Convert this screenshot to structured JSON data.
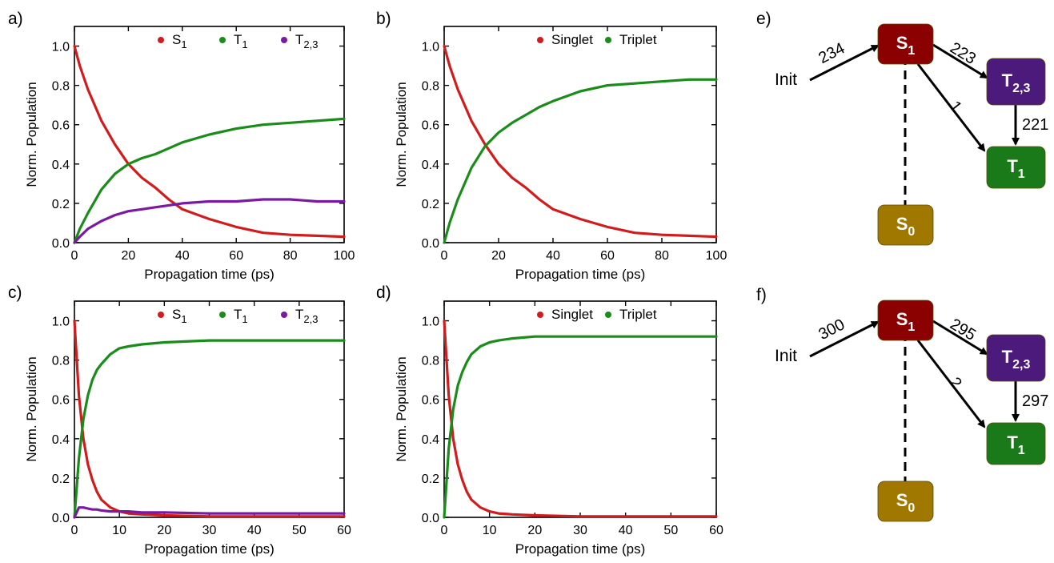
{
  "colors": {
    "s1": "#d01c1c",
    "t1": "#1a8c1a",
    "t23": "#7a1aa0",
    "box_s1": "#8b0000",
    "box_t23": "#4b1a7a",
    "box_t1": "#1a7a1a",
    "box_s0": "#a07800",
    "axis": "#000000"
  },
  "chart_data": [
    {
      "type": "line",
      "panel_label": "a)",
      "xlabel": "Propagation time (ps)",
      "ylabel": "Norm. Population",
      "xlim": [
        0,
        100
      ],
      "ylim": [
        0,
        1.1
      ],
      "xticks": [
        "0",
        "20",
        "40",
        "60",
        "80",
        "100"
      ],
      "yticks": [
        "0.0",
        "0.2",
        "0.4",
        "0.6",
        "0.8",
        "1.0"
      ],
      "legend": [
        {
          "base": "S",
          "sub": "1"
        },
        {
          "base": "T",
          "sub": "1"
        },
        {
          "base": "T",
          "sub": "2,3"
        }
      ],
      "legend_position": "top-right",
      "series": [
        {
          "name": "S1",
          "color": "s1",
          "x": [
            0,
            2,
            5,
            10,
            15,
            20,
            25,
            30,
            35,
            40,
            50,
            60,
            70,
            80,
            90,
            100
          ],
          "y": [
            1.0,
            0.9,
            0.78,
            0.62,
            0.5,
            0.4,
            0.33,
            0.28,
            0.22,
            0.17,
            0.12,
            0.08,
            0.05,
            0.04,
            0.035,
            0.03
          ]
        },
        {
          "name": "T1",
          "color": "t1",
          "x": [
            0,
            2,
            5,
            10,
            15,
            20,
            25,
            30,
            35,
            40,
            50,
            60,
            70,
            80,
            90,
            100
          ],
          "y": [
            0.0,
            0.07,
            0.15,
            0.27,
            0.35,
            0.4,
            0.43,
            0.45,
            0.48,
            0.51,
            0.55,
            0.58,
            0.6,
            0.61,
            0.62,
            0.63
          ]
        },
        {
          "name": "T2,3",
          "color": "t23",
          "x": [
            0,
            2,
            5,
            10,
            15,
            20,
            25,
            30,
            35,
            40,
            50,
            60,
            70,
            80,
            90,
            100
          ],
          "y": [
            0.0,
            0.03,
            0.07,
            0.11,
            0.14,
            0.16,
            0.17,
            0.18,
            0.19,
            0.2,
            0.21,
            0.21,
            0.22,
            0.22,
            0.21,
            0.21
          ]
        }
      ]
    },
    {
      "type": "line",
      "panel_label": "b)",
      "xlabel": "Propagation time (ps)",
      "ylabel": "Norm. Population",
      "xlim": [
        0,
        100
      ],
      "ylim": [
        0,
        1.1
      ],
      "xticks": [
        "0",
        "20",
        "40",
        "60",
        "80",
        "100"
      ],
      "yticks": [
        "0.0",
        "0.2",
        "0.4",
        "0.6",
        "0.8",
        "1.0"
      ],
      "legend": [
        {
          "base": "Singlet",
          "sub": ""
        },
        {
          "base": "Triplet",
          "sub": ""
        }
      ],
      "legend_position": "top-right",
      "series": [
        {
          "name": "Singlet",
          "color": "s1",
          "x": [
            0,
            2,
            5,
            10,
            15,
            20,
            25,
            30,
            35,
            40,
            50,
            60,
            70,
            80,
            90,
            100
          ],
          "y": [
            1.0,
            0.9,
            0.78,
            0.62,
            0.5,
            0.4,
            0.33,
            0.28,
            0.22,
            0.17,
            0.12,
            0.08,
            0.05,
            0.04,
            0.035,
            0.03
          ]
        },
        {
          "name": "Triplet",
          "color": "t1",
          "x": [
            0,
            2,
            5,
            10,
            15,
            20,
            25,
            30,
            35,
            40,
            50,
            60,
            70,
            80,
            90,
            100
          ],
          "y": [
            0.0,
            0.1,
            0.22,
            0.38,
            0.49,
            0.56,
            0.61,
            0.65,
            0.69,
            0.72,
            0.77,
            0.8,
            0.81,
            0.82,
            0.83,
            0.83
          ]
        }
      ]
    },
    {
      "type": "line",
      "panel_label": "c)",
      "xlabel": "Propagation time (ps)",
      "ylabel": "Norm. Population",
      "xlim": [
        0,
        60
      ],
      "ylim": [
        0,
        1.1
      ],
      "xticks": [
        "0",
        "10",
        "20",
        "30",
        "40",
        "50",
        "60"
      ],
      "yticks": [
        "0.0",
        "0.2",
        "0.4",
        "0.6",
        "0.8",
        "1.0"
      ],
      "legend": [
        {
          "base": "S",
          "sub": "1"
        },
        {
          "base": "T",
          "sub": "1"
        },
        {
          "base": "T",
          "sub": "2,3"
        }
      ],
      "legend_position": "top-right",
      "series": [
        {
          "name": "S1",
          "color": "s1",
          "x": [
            0,
            1,
            2,
            3,
            4,
            5,
            6,
            8,
            10,
            12,
            15,
            20,
            30,
            40,
            50,
            60
          ],
          "y": [
            1.0,
            0.62,
            0.4,
            0.27,
            0.19,
            0.13,
            0.09,
            0.05,
            0.03,
            0.02,
            0.015,
            0.01,
            0.005,
            0.005,
            0.005,
            0.005
          ]
        },
        {
          "name": "T1",
          "color": "t1",
          "x": [
            0,
            1,
            2,
            3,
            4,
            5,
            6,
            8,
            10,
            12,
            15,
            20,
            30,
            40,
            50,
            60
          ],
          "y": [
            0.0,
            0.3,
            0.5,
            0.62,
            0.7,
            0.75,
            0.78,
            0.83,
            0.86,
            0.87,
            0.88,
            0.89,
            0.9,
            0.9,
            0.9,
            0.9
          ]
        },
        {
          "name": "T2,3",
          "color": "t23",
          "x": [
            0,
            1,
            2,
            3,
            4,
            5,
            6,
            8,
            10,
            12,
            15,
            20,
            30,
            40,
            50,
            60
          ],
          "y": [
            0.0,
            0.05,
            0.05,
            0.045,
            0.04,
            0.04,
            0.035,
            0.03,
            0.03,
            0.03,
            0.025,
            0.025,
            0.02,
            0.02,
            0.02,
            0.02
          ]
        }
      ]
    },
    {
      "type": "line",
      "panel_label": "d)",
      "xlabel": "Propagation time (ps)",
      "ylabel": "Norm. Population",
      "xlim": [
        0,
        60
      ],
      "ylim": [
        0,
        1.1
      ],
      "xticks": [
        "0",
        "10",
        "20",
        "30",
        "40",
        "50",
        "60"
      ],
      "yticks": [
        "0.0",
        "0.2",
        "0.4",
        "0.6",
        "0.8",
        "1.0"
      ],
      "legend": [
        {
          "base": "Singlet",
          "sub": ""
        },
        {
          "base": "Triplet",
          "sub": ""
        }
      ],
      "legend_position": "top-right",
      "series": [
        {
          "name": "Singlet",
          "color": "s1",
          "x": [
            0,
            1,
            2,
            3,
            4,
            5,
            6,
            8,
            10,
            12,
            15,
            20,
            30,
            40,
            50,
            60
          ],
          "y": [
            1.0,
            0.62,
            0.4,
            0.27,
            0.19,
            0.13,
            0.09,
            0.05,
            0.03,
            0.02,
            0.015,
            0.01,
            0.005,
            0.005,
            0.005,
            0.005
          ]
        },
        {
          "name": "Triplet",
          "color": "t1",
          "x": [
            0,
            1,
            2,
            3,
            4,
            5,
            6,
            8,
            10,
            12,
            15,
            20,
            30,
            40,
            50,
            60
          ],
          "y": [
            0.0,
            0.35,
            0.55,
            0.67,
            0.74,
            0.79,
            0.83,
            0.87,
            0.89,
            0.9,
            0.91,
            0.92,
            0.92,
            0.92,
            0.92,
            0.92
          ]
        }
      ]
    }
  ],
  "diagrams": [
    {
      "panel_label": "e)",
      "init_label": "Init",
      "states": {
        "s1": {
          "base": "S",
          "sub": "1"
        },
        "t23": {
          "base": "T",
          "sub": "2,3"
        },
        "t1": {
          "base": "T",
          "sub": "1"
        },
        "s0": {
          "base": "S",
          "sub": "0"
        }
      },
      "counts": {
        "init_s1": "234",
        "s1_t23": "223",
        "s1_t1": "1",
        "t23_t1": "221"
      }
    },
    {
      "panel_label": "f)",
      "init_label": "Init",
      "states": {
        "s1": {
          "base": "S",
          "sub": "1"
        },
        "t23": {
          "base": "T",
          "sub": "2,3"
        },
        "t1": {
          "base": "T",
          "sub": "1"
        },
        "s0": {
          "base": "S",
          "sub": "0"
        }
      },
      "counts": {
        "init_s1": "300",
        "s1_t23": "295",
        "s1_t1": "2",
        "t23_t1": "297"
      }
    }
  ]
}
